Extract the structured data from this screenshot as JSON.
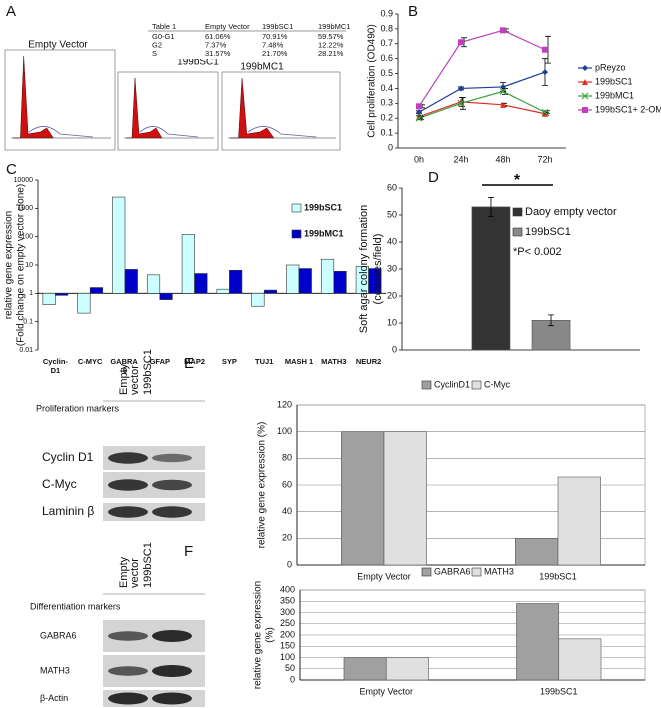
{
  "panel_labels": [
    "A",
    "B",
    "C",
    "D",
    "E",
    "F"
  ],
  "panel_a": {
    "histogram_labels": [
      "Empty Vector",
      "199bSC1",
      "199bMC1"
    ],
    "table": {
      "header": [
        "Table 1",
        "Empty Vector",
        "199bSC1",
        "199bMC1"
      ],
      "rows": [
        [
          "G0-G1",
          "61.06%",
          "70.91%",
          "59.57%"
        ],
        [
          "G2",
          "7.37%",
          "7.48%",
          "12.22%"
        ],
        [
          "S",
          "31.57%",
          "21.70%",
          "28.21%"
        ]
      ]
    }
  },
  "blots": [
    {
      "columns": [
        "Empty vector",
        "199bSC1"
      ],
      "heading": "Proliferation markers",
      "rows": [
        "Cyclin D1",
        "C-Myc",
        "Laminin β"
      ]
    },
    {
      "columns": [
        "Empty vector",
        "199bSC1"
      ],
      "heading": "Differentiation markers",
      "rows": [
        "GABRA6",
        "MATH3",
        "β-Actin"
      ]
    }
  ],
  "chart_data": [
    {
      "type": "line",
      "ylabel": "Cell proliferation (OD490)",
      "categories": [
        "0h",
        "24h",
        "48h",
        "72h"
      ],
      "ylim": [
        0,
        0.9
      ],
      "yticks": [
        0,
        0.1,
        0.2,
        0.3,
        0.4,
        0.5,
        0.6,
        0.7,
        0.8,
        0.9
      ],
      "legend": "right",
      "series": [
        {
          "name": "pReyzo",
          "color": "#1f3d99",
          "marker": "diamond",
          "values": [
            0.24,
            0.4,
            0.41,
            0.51
          ],
          "errors": [
            0.01,
            0.01,
            0.03,
            0.09
          ]
        },
        {
          "name": "199bSC1",
          "color": "#e03020",
          "marker": "triangle",
          "values": [
            0.21,
            0.31,
            0.29,
            0.23
          ],
          "errors": [
            0.01,
            0.03,
            0.01,
            0.01
          ]
        },
        {
          "name": "199bMC1",
          "color": "#3aa040",
          "marker": "x",
          "values": [
            0.2,
            0.3,
            0.38,
            0.24
          ],
          "errors": [
            0.01,
            0.04,
            0.02,
            0.01
          ]
        },
        {
          "name": "199bSC1+ 2-OM",
          "color": "#c040c0",
          "marker": "square",
          "values": [
            0.28,
            0.71,
            0.79,
            0.66
          ],
          "errors": [
            0.01,
            0.03,
            0.01,
            0.09
          ]
        }
      ]
    },
    {
      "type": "bar",
      "log": true,
      "ylabel": [
        "relative gene expression",
        "(Fold change on empty vector clone)"
      ],
      "categories": [
        "Cyclin-D1",
        "C-MYC",
        "GABRA 6",
        "GFAP",
        "MAP2",
        "SYP",
        "TUJ1",
        "MASH 1",
        "MATH3",
        "NEUR2"
      ],
      "ylim": [
        0.01,
        10000
      ],
      "yticks": [
        0.01,
        0.1,
        1,
        10,
        100,
        1000,
        10000
      ],
      "legend": "upper right",
      "series": [
        {
          "name": "199bSC1",
          "color": "#ccffff",
          "values": [
            0.4,
            0.2,
            2500,
            4.5,
            120,
            1.4,
            0.35,
            10,
            16,
            9
          ]
        },
        {
          "name": "199bMC1",
          "color": "#0000cc",
          "values": [
            0.85,
            1.6,
            7,
            0.6,
            5,
            6.5,
            1.3,
            7.5,
            6,
            7.5
          ]
        }
      ]
    },
    {
      "type": "bar",
      "ylabel": [
        "Soft agar colony formation",
        "(colonies/field)"
      ],
      "categories": [
        null
      ],
      "ylim": [
        0,
        60
      ],
      "yticks": [
        0,
        10,
        20,
        30,
        40,
        50,
        60
      ],
      "legend": "right",
      "annotations": [
        "*",
        "*P< 0.002"
      ],
      "series": [
        {
          "name": "Daoy empty vector",
          "color": "#333333",
          "values": [
            53
          ],
          "errors": [
            3.5
          ]
        },
        {
          "name": "199bSC1",
          "color": "#888888",
          "values": [
            11
          ],
          "errors": [
            2
          ]
        }
      ]
    },
    {
      "type": "bar",
      "ylabel": "relative gene expression (%)",
      "categories": [
        "Empty Vector",
        "199bSC1"
      ],
      "ylim": [
        0,
        120
      ],
      "yticks": [
        0,
        20,
        40,
        60,
        80,
        100,
        120
      ],
      "grid": true,
      "legend": "top",
      "series": [
        {
          "name": "CyclinD1",
          "color": "#a0a0a0",
          "values": [
            100,
            20
          ]
        },
        {
          "name": "C-Myc",
          "color": "#e0e0e0",
          "values": [
            100,
            66
          ]
        }
      ]
    },
    {
      "type": "bar",
      "ylabel": [
        "relative gene expression",
        "(%)"
      ],
      "categories": [
        "Empty Vector",
        "199bSC1"
      ],
      "ylim": [
        0,
        400
      ],
      "yticks": [
        0,
        50,
        100,
        150,
        200,
        250,
        300,
        350,
        400
      ],
      "grid": true,
      "legend": "top",
      "series": [
        {
          "name": "GABRA6",
          "color": "#a0a0a0",
          "values": [
            100,
            340
          ]
        },
        {
          "name": "MATH3",
          "color": "#e0e0e0",
          "values": [
            100,
            183
          ]
        }
      ]
    }
  ]
}
